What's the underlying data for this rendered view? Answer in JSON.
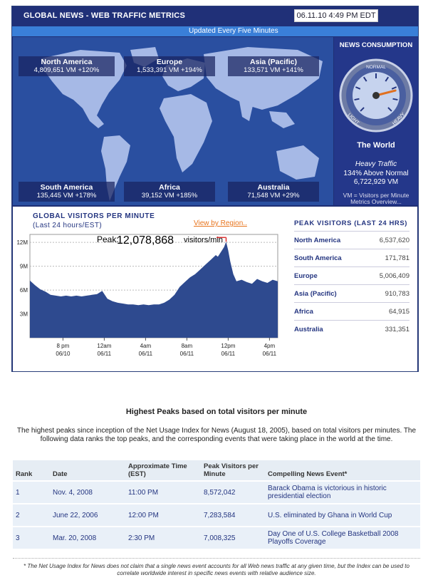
{
  "header": {
    "title": "GLOBAL NEWS - WEB TRAFFIC METRICS",
    "datetime": "06.11.10 4:49 PM EDT",
    "updated": "Updated Every Five Minutes"
  },
  "regions": [
    {
      "name": "North America",
      "value": "4,809,651 VM +120%"
    },
    {
      "name": "Europe",
      "value": "1,533,391 VM +194%"
    },
    {
      "name": "Asia (Pacific)",
      "value": "133,571 VM +141%"
    },
    {
      "name": "South America",
      "value": "135,445 VM +178%"
    },
    {
      "name": "Africa",
      "value": "39,152 VM +185%"
    },
    {
      "name": "Australia",
      "value": "71,548 VM +29%"
    }
  ],
  "consumption": {
    "title": "NEWS CONSUMPTION",
    "gauge_labels": {
      "top": "NORMAL",
      "left": "LIGHT",
      "right": "HEAVY"
    },
    "gauge_level": 0.78,
    "scope": "The World",
    "level_text": "Heavy Traffic",
    "above": "134% Above Normal",
    "vm": "6,722,929 VM",
    "vm_def_1": "VM = Visitors per Minute",
    "vm_def_2": "Metrics Overview..."
  },
  "visitors_chart": {
    "title": "GLOBAL VISITORS PER MINUTE",
    "subtitle": "(Last 24 hours/EST)",
    "view_link": "View by Region..",
    "peak_prefix": "Peak:",
    "peak_value": "12,078,868",
    "peak_suffix": "visitors/min"
  },
  "peak_visitors": {
    "title": "PEAK VISITORS (LAST 24 HRS)",
    "rows": [
      {
        "region": "North America",
        "value": "6,537,620"
      },
      {
        "region": "South America",
        "value": "171,781"
      },
      {
        "region": "Europe",
        "value": "5,006,409"
      },
      {
        "region": "Asia (Pacific)",
        "value": "910,783"
      },
      {
        "region": "Africa",
        "value": "64,915"
      },
      {
        "region": "Australia",
        "value": "331,351"
      }
    ]
  },
  "chart_data": {
    "type": "area",
    "title": "GLOBAL VISITORS PER MINUTE",
    "subtitle": "(Last 24 hours/EST)",
    "ylim": [
      0,
      13000000
    ],
    "yticks": [
      3000000,
      6000000,
      9000000,
      12000000
    ],
    "ytick_labels": [
      "3M",
      "6M",
      "9M",
      "12M"
    ],
    "xlim": [
      0,
      24
    ],
    "xticks": [
      {
        "t": 3.2,
        "line1": "8 pm",
        "line2": "06/10"
      },
      {
        "t": 7.2,
        "line1": "12am",
        "line2": "06/11"
      },
      {
        "t": 11.2,
        "line1": "4am",
        "line2": "06/11"
      },
      {
        "t": 15.2,
        "line1": "8am",
        "line2": "06/11"
      },
      {
        "t": 19.2,
        "line1": "12pm",
        "line2": "06/11"
      },
      {
        "t": 23.2,
        "line1": "4pm",
        "line2": "06/11"
      }
    ],
    "x": [
      0,
      0.5,
      1,
      1.5,
      2,
      2.5,
      3,
      3.5,
      4,
      4.5,
      5,
      5.5,
      6,
      6.5,
      7,
      7.5,
      8,
      8.5,
      9,
      9.5,
      10,
      10.5,
      11,
      11.5,
      12,
      12.5,
      13,
      13.5,
      14,
      14.5,
      15,
      15.5,
      16,
      16.5,
      17,
      17.5,
      18,
      18.2,
      18.5,
      18.8,
      19,
      19.2,
      19.4,
      19.7,
      20,
      20.5,
      21,
      21.5,
      22,
      22.5,
      23,
      23.5,
      24
    ],
    "y": [
      7200000,
      6600000,
      6100000,
      5800000,
      5400000,
      5300000,
      5200000,
      5300000,
      5200000,
      5300000,
      5200000,
      5300000,
      5400000,
      5500000,
      5900000,
      4900000,
      4600000,
      4400000,
      4300000,
      4200000,
      4200000,
      4100000,
      4200000,
      4100000,
      4200000,
      4200000,
      4400000,
      4800000,
      5400000,
      6400000,
      7000000,
      7600000,
      8000000,
      8600000,
      9200000,
      9800000,
      10400000,
      10200000,
      10800000,
      11400000,
      12078868,
      11000000,
      9600000,
      8000000,
      7100000,
      7300000,
      7000000,
      6800000,
      7400000,
      7100000,
      6900000,
      7300000,
      7100000
    ]
  },
  "highest_peaks": {
    "title": "Highest Peaks based on total visitors per minute",
    "intro": "The highest peaks since inception of the Net Usage Index for News (August 18, 2005), based on total visitors per minutes. The following data ranks the top peaks, and the corresponding events that were taking place in the world at the time.",
    "headers": [
      "Rank",
      "Date",
      "Approximate Time (EST)",
      "Peak Visitors per Minute",
      "Compelling News Event*"
    ],
    "rows": [
      {
        "rank": "1",
        "date": "Nov. 4,  2008",
        "time": "11:00 PM",
        "peak": "8,572,042",
        "event": "Barack Obama is victorious in historic presidential election"
      },
      {
        "rank": "2",
        "date": "June 22, 2006",
        "time": "12:00 PM",
        "peak": "7,283,584",
        "event": "U.S. eliminated by Ghana in World Cup"
      },
      {
        "rank": "3",
        "date": "Mar. 20,  2008",
        "time": "2:30 PM",
        "peak": "7,008,325",
        "event": "Day One of U.S. College  Basketball 2008 Playoffs Coverage"
      }
    ],
    "footnote": "* The Net Usage Index for News does not claim that a single news event accounts for all Web news traffic at any given time, but the Index can be used to correlate worldwide interest in specific news events with relative audience size."
  },
  "colors": {
    "panel_bg": "#1f2f74",
    "map_ocean": "#2a4fa0",
    "continent": "#a6b9e6",
    "chart_fill": "#2e4a8f",
    "accent_orange": "#e8741c"
  }
}
